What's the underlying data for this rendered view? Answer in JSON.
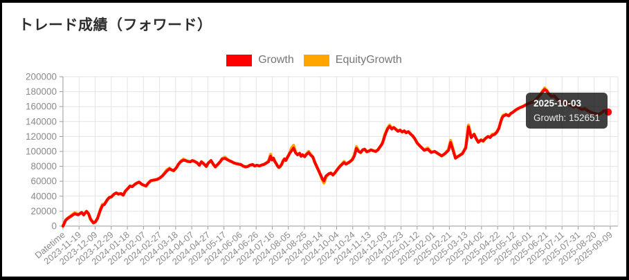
{
  "title": "トレード成績（フォワード）",
  "legend": {
    "items": [
      {
        "label": "Growth",
        "color": "#ff0000"
      },
      {
        "label": "EquityGrowth",
        "color": "#ffa500"
      }
    ]
  },
  "tooltip": {
    "date": "2025-10-03",
    "text": "Growth: 152651",
    "value": 152651
  },
  "chart_data": {
    "type": "line",
    "title": "トレード成績（フォワード）",
    "xlabel": "",
    "ylabel": "",
    "ylim": [
      0,
      200000
    ],
    "grid": true,
    "legend_position": "top",
    "y_ticks": [
      0,
      20000,
      40000,
      60000,
      80000,
      100000,
      120000,
      140000,
      160000,
      180000,
      200000
    ],
    "x_ticks": [
      "Datetime",
      "2023-11-19",
      "2023-12-09",
      "2023-12-29",
      "2024-01-18",
      "2024-02-07",
      "2024-02-27",
      "2024-03-18",
      "2024-04-07",
      "2024-04-27",
      "2024-05-17",
      "2024-06-06",
      "2024-06-26",
      "2024-07-16",
      "2024-08-05",
      "2024-08-25",
      "2024-09-14",
      "2024-10-04",
      "2024-10-24",
      "2024-11-13",
      "2024-12-03",
      "2024-12-23",
      "2025-01-12",
      "2025-02-01",
      "2025-02-21",
      "2025-03-13",
      "2025-04-02",
      "2025-04-22",
      "2025-05-12",
      "2025-06-01",
      "2025-06-21",
      "2025-07-11",
      "2025-07-31",
      "2025-08-20",
      "2025-09-09"
    ],
    "series": [
      {
        "name": "Growth",
        "color": "#ff0000",
        "points": [
          [
            0,
            0
          ],
          [
            0.17,
            8000
          ],
          [
            0.3,
            10500
          ],
          [
            0.52,
            13500
          ],
          [
            0.73,
            16500
          ],
          [
            0.95,
            15000
          ],
          [
            1.16,
            18200
          ],
          [
            1.29,
            15000
          ],
          [
            1.46,
            19700
          ],
          [
            1.59,
            16500
          ],
          [
            1.72,
            9000
          ],
          [
            1.89,
            4300
          ],
          [
            2.02,
            5800
          ],
          [
            2.15,
            10500
          ],
          [
            2.32,
            21300
          ],
          [
            2.45,
            27500
          ],
          [
            2.58,
            29000
          ],
          [
            2.75,
            35200
          ],
          [
            2.88,
            38300
          ],
          [
            3.01,
            39200
          ],
          [
            3.18,
            42900
          ],
          [
            3.31,
            44400
          ],
          [
            3.44,
            42900
          ],
          [
            3.61,
            43500
          ],
          [
            3.74,
            41400
          ],
          [
            3.87,
            46600
          ],
          [
            4.04,
            50600
          ],
          [
            4.17,
            53700
          ],
          [
            4.3,
            52800
          ],
          [
            4.47,
            55900
          ],
          [
            4.6,
            57700
          ],
          [
            4.73,
            59000
          ],
          [
            4.9,
            55900
          ],
          [
            5.03,
            54600
          ],
          [
            5.16,
            53700
          ],
          [
            5.33,
            58300
          ],
          [
            5.46,
            60800
          ],
          [
            5.59,
            61400
          ],
          [
            5.76,
            62000
          ],
          [
            5.89,
            62900
          ],
          [
            6.02,
            64500
          ],
          [
            6.19,
            67500
          ],
          [
            6.32,
            70600
          ],
          [
            6.45,
            73700
          ],
          [
            6.62,
            76800
          ],
          [
            6.75,
            75200
          ],
          [
            6.88,
            74300
          ],
          [
            7.05,
            78300
          ],
          [
            7.18,
            83000
          ],
          [
            7.31,
            86100
          ],
          [
            7.48,
            88300
          ],
          [
            7.61,
            87700
          ],
          [
            7.74,
            86700
          ],
          [
            7.91,
            86100
          ],
          [
            8.04,
            87700
          ],
          [
            8.17,
            86700
          ],
          [
            8.34,
            84600
          ],
          [
            8.47,
            81500
          ],
          [
            8.6,
            86100
          ],
          [
            8.77,
            83000
          ],
          [
            8.9,
            79900
          ],
          [
            9.03,
            84600
          ],
          [
            9.2,
            87700
          ],
          [
            9.33,
            83000
          ],
          [
            9.46,
            79300
          ],
          [
            9.63,
            83000
          ],
          [
            9.76,
            86100
          ],
          [
            9.89,
            89800
          ],
          [
            10.06,
            90700
          ],
          [
            10.19,
            89200
          ],
          [
            10.32,
            87700
          ],
          [
            10.49,
            86100
          ],
          [
            10.62,
            84600
          ],
          [
            10.75,
            83700
          ],
          [
            10.92,
            83000
          ],
          [
            11.05,
            82400
          ],
          [
            11.18,
            80500
          ],
          [
            11.35,
            79300
          ],
          [
            11.48,
            79900
          ],
          [
            11.61,
            81500
          ],
          [
            11.78,
            82400
          ],
          [
            11.91,
            80500
          ],
          [
            12.04,
            81500
          ],
          [
            12.21,
            80500
          ],
          [
            12.34,
            81800
          ],
          [
            12.47,
            82400
          ],
          [
            12.64,
            84600
          ],
          [
            12.77,
            86100
          ],
          [
            12.9,
            93500
          ],
          [
            12.98,
            88500
          ],
          [
            13.07,
            91000
          ],
          [
            13.16,
            86500
          ],
          [
            13.24,
            84000
          ],
          [
            13.33,
            80500
          ],
          [
            13.41,
            78500
          ],
          [
            13.5,
            80000
          ],
          [
            13.59,
            83000
          ],
          [
            13.67,
            87000
          ],
          [
            13.76,
            90000
          ],
          [
            13.84,
            88000
          ],
          [
            13.93,
            91500
          ],
          [
            14.02,
            95000
          ],
          [
            14.1,
            98000
          ],
          [
            14.19,
            100500
          ],
          [
            14.32,
            104500
          ],
          [
            14.45,
            98000
          ],
          [
            14.57,
            95500
          ],
          [
            14.7,
            97500
          ],
          [
            14.79,
            93500
          ],
          [
            14.88,
            95500
          ],
          [
            15.01,
            93000
          ],
          [
            15.13,
            96000
          ],
          [
            15.26,
            98500
          ],
          [
            15.39,
            95000
          ],
          [
            15.52,
            92500
          ],
          [
            15.65,
            85000
          ],
          [
            15.78,
            79000
          ],
          [
            15.91,
            73000
          ],
          [
            15.99,
            69000
          ],
          [
            16.12,
            63000
          ],
          [
            16.21,
            60500
          ],
          [
            16.34,
            67000
          ],
          [
            16.51,
            70000
          ],
          [
            16.64,
            71000
          ],
          [
            16.77,
            68500
          ],
          [
            16.9,
            71500
          ],
          [
            17.03,
            75500
          ],
          [
            17.2,
            80000
          ],
          [
            17.33,
            82500
          ],
          [
            17.46,
            85000
          ],
          [
            17.58,
            83000
          ],
          [
            17.71,
            84500
          ],
          [
            17.84,
            86500
          ],
          [
            17.97,
            89000
          ],
          [
            18.1,
            94000
          ],
          [
            18.23,
            104000
          ],
          [
            18.36,
            100000
          ],
          [
            18.49,
            98500
          ],
          [
            18.62,
            102000
          ],
          [
            18.74,
            103000
          ],
          [
            18.87,
            99500
          ],
          [
            19.0,
            100500
          ],
          [
            19.13,
            102000
          ],
          [
            19.26,
            101000
          ],
          [
            19.43,
            100000
          ],
          [
            19.56,
            102000
          ],
          [
            19.69,
            106000
          ],
          [
            19.82,
            110000
          ],
          [
            19.91,
            115000
          ],
          [
            19.99,
            121000
          ],
          [
            20.08,
            126000
          ],
          [
            20.16,
            130000
          ],
          [
            20.29,
            133500
          ],
          [
            20.42,
            130000
          ],
          [
            20.55,
            132000
          ],
          [
            20.68,
            129500
          ],
          [
            20.81,
            127000
          ],
          [
            20.94,
            128500
          ],
          [
            21.07,
            126000
          ],
          [
            21.2,
            127500
          ],
          [
            21.32,
            125000
          ],
          [
            21.45,
            126500
          ],
          [
            21.58,
            123500
          ],
          [
            21.71,
            121000
          ],
          [
            21.84,
            117500
          ],
          [
            22.01,
            111000
          ],
          [
            22.23,
            106000
          ],
          [
            22.44,
            101500
          ],
          [
            22.66,
            103000
          ],
          [
            22.87,
            98500
          ],
          [
            23.09,
            100000
          ],
          [
            23.3,
            97000
          ],
          [
            23.52,
            94000
          ],
          [
            23.73,
            97000
          ],
          [
            23.95,
            101500
          ],
          [
            24.08,
            112000
          ],
          [
            24.25,
            100000
          ],
          [
            24.38,
            91000
          ],
          [
            24.59,
            94000
          ],
          [
            24.81,
            97000
          ],
          [
            25.02,
            104600
          ],
          [
            25.19,
            133000
          ],
          [
            25.36,
            118500
          ],
          [
            25.54,
            123000
          ],
          [
            25.67,
            117000
          ],
          [
            25.8,
            112300
          ],
          [
            25.97,
            115400
          ],
          [
            26.1,
            113800
          ],
          [
            26.23,
            117000
          ],
          [
            26.4,
            120000
          ],
          [
            26.53,
            118500
          ],
          [
            26.66,
            121500
          ],
          [
            26.83,
            123000
          ],
          [
            26.96,
            126200
          ],
          [
            27.08,
            131000
          ],
          [
            27.17,
            138000
          ],
          [
            27.26,
            144000
          ],
          [
            27.34,
            147000
          ],
          [
            27.52,
            149200
          ],
          [
            27.69,
            147700
          ],
          [
            27.82,
            150800
          ],
          [
            27.94,
            152300
          ],
          [
            28.12,
            155400
          ],
          [
            28.25,
            157000
          ],
          [
            28.37,
            158500
          ],
          [
            28.55,
            160000
          ],
          [
            28.68,
            161500
          ],
          [
            28.8,
            163000
          ],
          [
            28.98,
            164600
          ],
          [
            29.15,
            166000
          ],
          [
            29.32,
            168000
          ],
          [
            29.49,
            172000
          ],
          [
            29.66,
            176000
          ],
          [
            29.79,
            180000
          ],
          [
            29.92,
            183000
          ],
          [
            30.05,
            181000
          ],
          [
            30.18,
            177000
          ],
          [
            30.35,
            173500
          ],
          [
            30.52,
            174500
          ],
          [
            30.7,
            170000
          ],
          [
            30.87,
            167500
          ],
          [
            31.04,
            165500
          ],
          [
            31.21,
            163500
          ],
          [
            31.38,
            164500
          ],
          [
            31.56,
            161500
          ],
          [
            31.73,
            159500
          ],
          [
            31.9,
            161000
          ],
          [
            32.07,
            158000
          ],
          [
            32.24,
            156000
          ],
          [
            32.41,
            157000
          ],
          [
            32.58,
            154500
          ],
          [
            32.75,
            153000
          ],
          [
            32.93,
            151500
          ],
          [
            33.1,
            150500
          ],
          [
            33.27,
            149500
          ],
          [
            33.44,
            151500
          ],
          [
            33.61,
            154500
          ],
          [
            33.74,
            153500
          ],
          [
            33.87,
            152651
          ]
        ]
      },
      {
        "name": "EquityGrowth",
        "color": "#ffa500",
        "base": "Growth",
        "bumps": [
          [
            0.73,
            1500
          ],
          [
            2.45,
            1500
          ],
          [
            6.45,
            1500
          ],
          [
            7.48,
            1200
          ],
          [
            10.06,
            1400
          ],
          [
            12.9,
            2600
          ],
          [
            14.19,
            2200
          ],
          [
            14.32,
            2600
          ],
          [
            15.26,
            1500
          ],
          [
            16.21,
            -2800
          ],
          [
            17.46,
            1500
          ],
          [
            18.23,
            2200
          ],
          [
            19.99,
            1500
          ],
          [
            20.29,
            1800
          ],
          [
            22.66,
            1400
          ],
          [
            24.08,
            2600
          ],
          [
            25.19,
            2200
          ],
          [
            26.66,
            1400
          ],
          [
            27.34,
            1400
          ],
          [
            29.92,
            1800
          ],
          [
            31.38,
            1400
          ],
          [
            32.41,
            1200
          ]
        ]
      }
    ],
    "annotations": [
      {
        "kind": "tooltip",
        "x": "2025-10-03",
        "series": "Growth",
        "value": 152651
      }
    ],
    "last_point_marker": true
  }
}
